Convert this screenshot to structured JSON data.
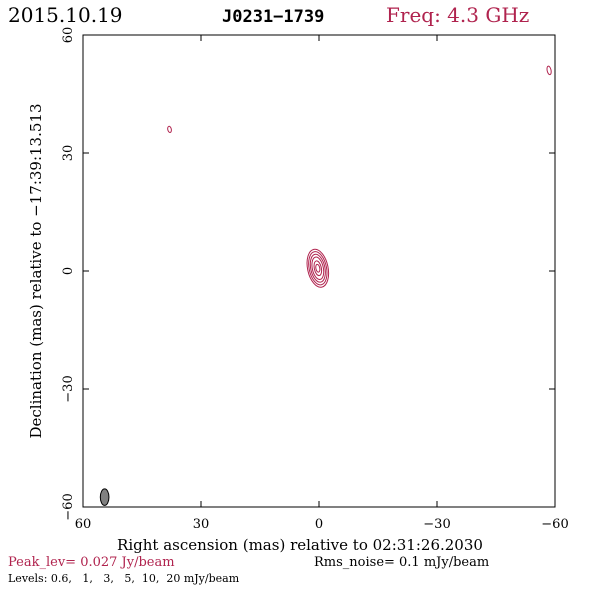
{
  "header": {
    "date": "2015.10.19",
    "source": "J0231−1739",
    "freq": "Freq: 4.3 GHz"
  },
  "colors": {
    "accent": "#b0234e",
    "ink": "#000000",
    "beam_fill": "#808080"
  },
  "chart_data": {
    "type": "contour",
    "xlabel": "Right ascension (mas) relative to 02:31:26.2030",
    "ylabel": "Declination (mas) relative to −17:39:13.513",
    "xlim": [
      60,
      -60
    ],
    "ylim": [
      -60,
      60
    ],
    "x_ticks": [
      60,
      30,
      0,
      -30,
      -60
    ],
    "y_ticks": [
      -60,
      -30,
      0,
      30,
      60
    ],
    "x_tick_labels": [
      "60",
      "30",
      "0",
      "−30",
      "−60"
    ],
    "y_tick_labels": [
      "−60",
      "−30",
      "0",
      "30",
      "60"
    ],
    "contour_levels_mJy": [
      0.6,
      1,
      3,
      5,
      10,
      20
    ],
    "components": [
      {
        "name": "core",
        "x": 0.3,
        "y": 0.7,
        "contours": [
          {
            "rx": 2.6,
            "ry": 4.9
          },
          {
            "rx": 2.2,
            "ry": 4.3
          },
          {
            "rx": 1.8,
            "ry": 3.6
          },
          {
            "rx": 1.4,
            "ry": 2.9
          },
          {
            "rx": 0.9,
            "ry": 1.9
          },
          {
            "rx": 0.5,
            "ry": 1.0
          }
        ]
      },
      {
        "name": "blob-1",
        "x": 38.0,
        "y": 36.0,
        "contours": [
          {
            "rx": 0.45,
            "ry": 0.8
          }
        ]
      },
      {
        "name": "blob-2",
        "x": -58.5,
        "y": 51.0,
        "contours": [
          {
            "rx": 0.5,
            "ry": 1.1
          }
        ]
      }
    ],
    "beam": {
      "x": 54.5,
      "y": -57.5,
      "major": 4.2,
      "minor": 2.2
    }
  },
  "footer": {
    "peak": "Peak_lev=  0.027 Jy/beam",
    "rms": "Rms_noise=  0.1 mJy/beam",
    "levels": "Levels: 0.6,   1,   3,   5,  10,  20 mJy/beam"
  }
}
